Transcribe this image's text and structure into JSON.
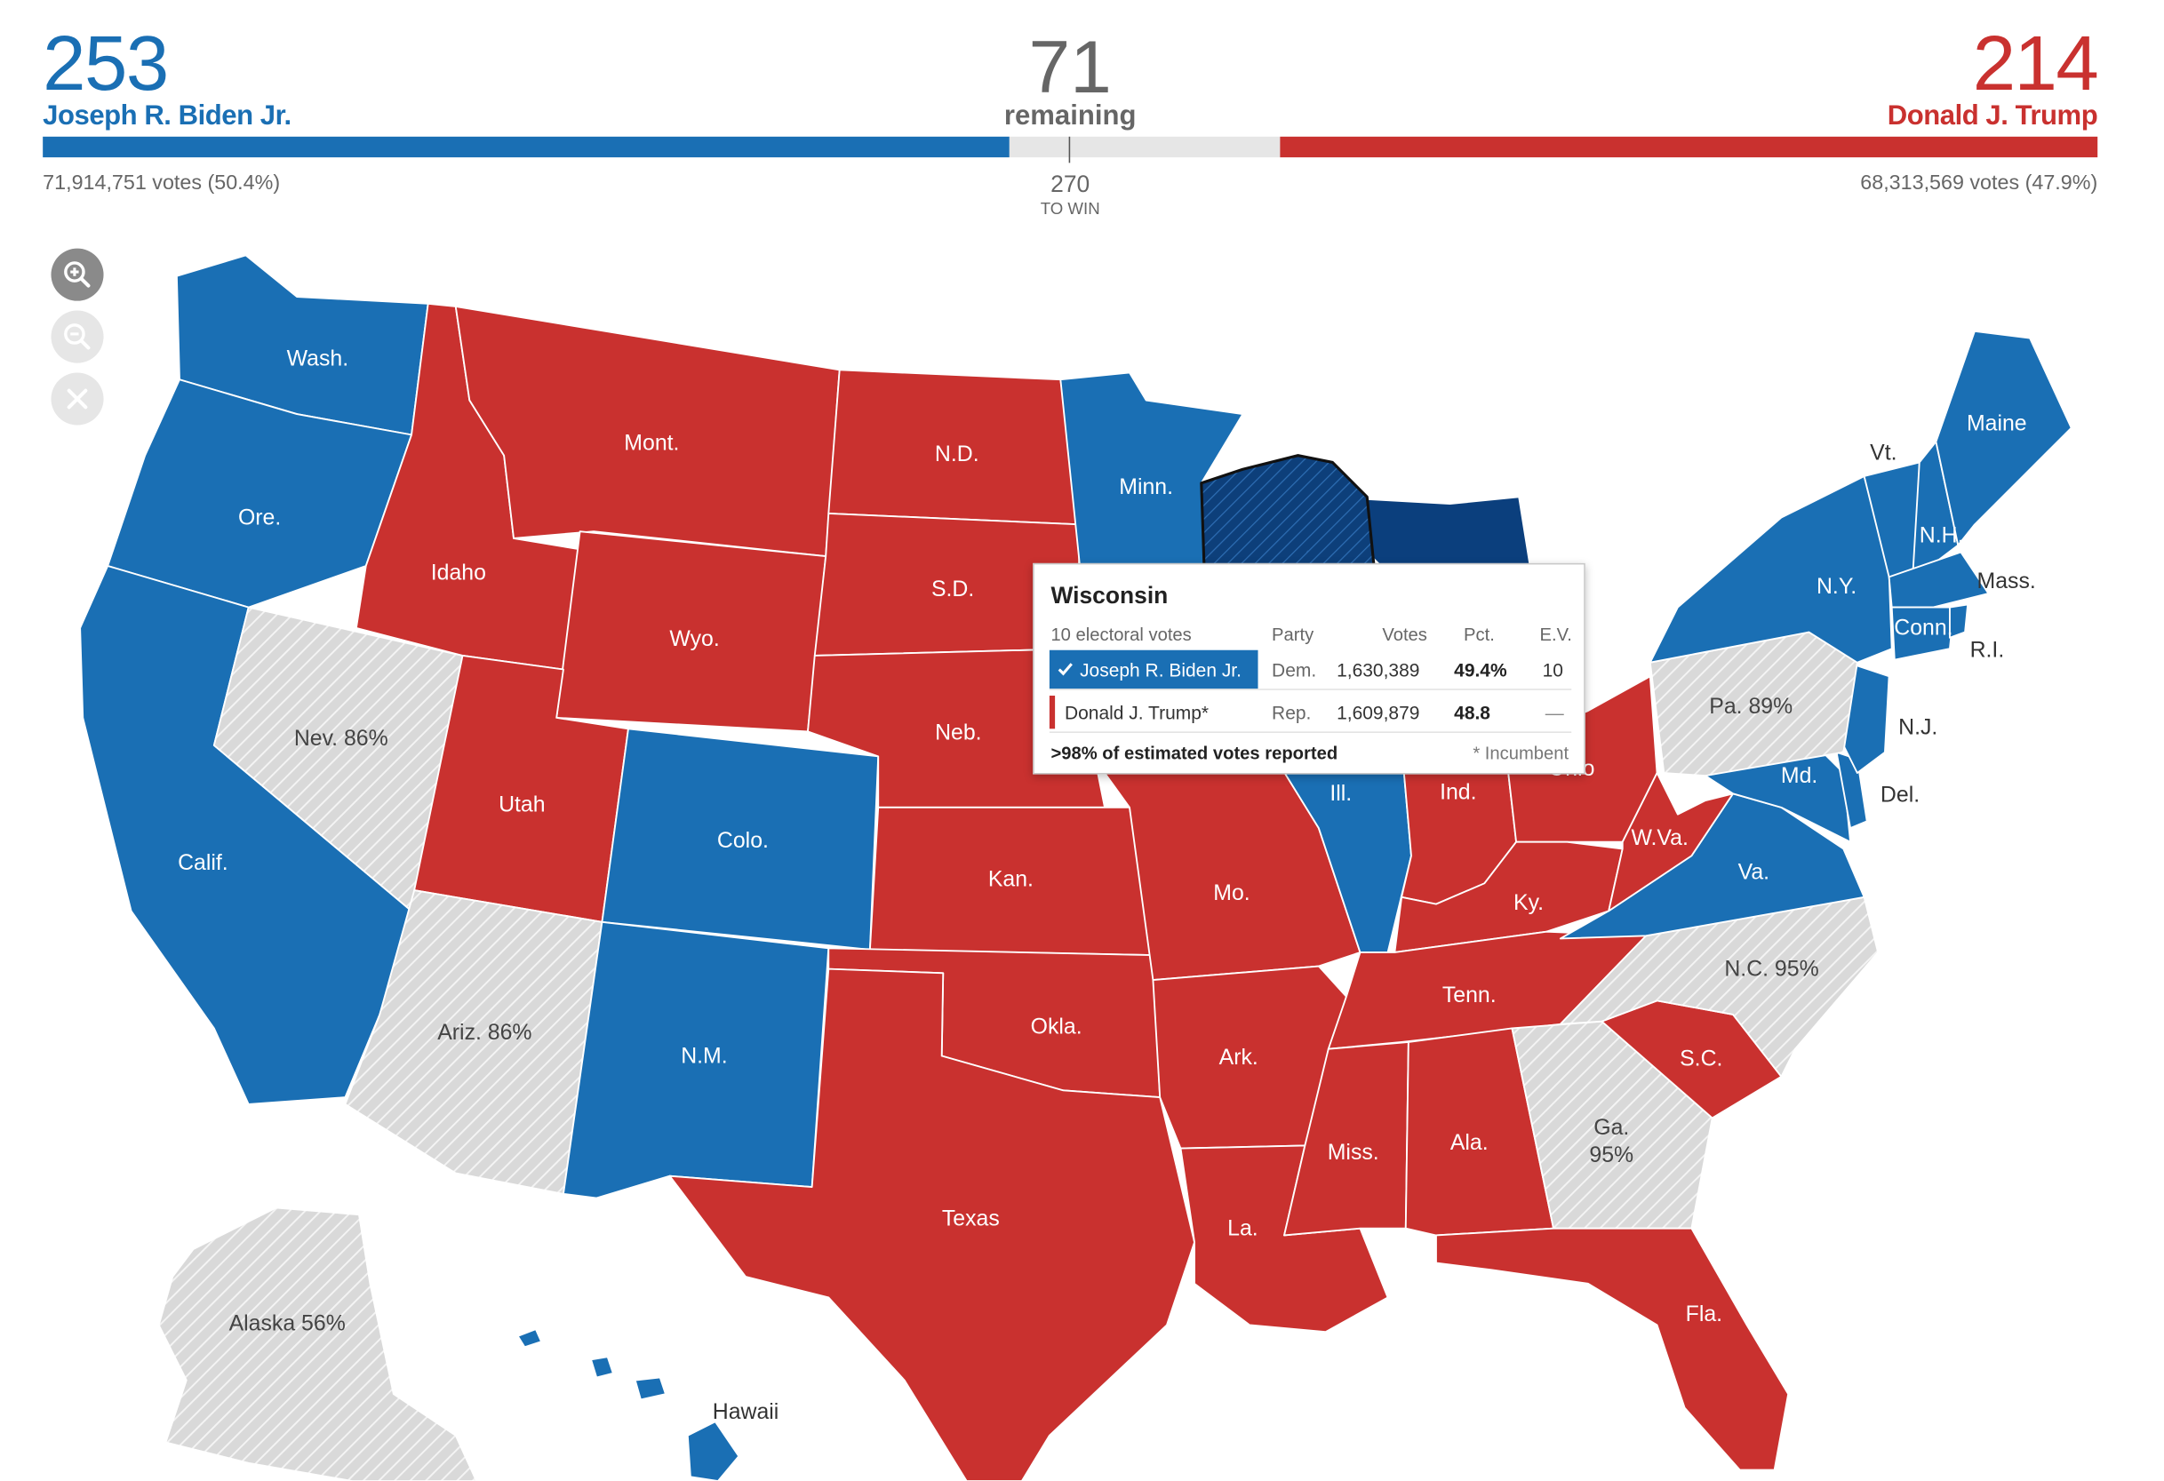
{
  "header": {
    "dem": {
      "ev": "253",
      "name": "Joseph R. Biden Jr.",
      "votes": "71,914,751 votes (50.4%)",
      "color": "#1a6fb4"
    },
    "rep": {
      "ev": "214",
      "name": "Donald J. Trump",
      "votes": "68,313,569 votes (47.9%)",
      "color": "#c9312f"
    },
    "remaining": {
      "count": "71",
      "label": "remaining"
    },
    "threshold": {
      "value": "270",
      "label": "TO WIN"
    }
  },
  "progress": {
    "dem_ev": 253,
    "remaining_ev": 71,
    "rep_ev": 214,
    "total_ev": 538
  },
  "zoom_controls": {
    "zoom_in": "zoom-in-icon",
    "zoom_out": "zoom-out-icon",
    "reset": "close-icon"
  },
  "colors": {
    "dem": "#1a6fb4",
    "rep": "#c9312f",
    "uncalled": "#dcdcdc",
    "hover_dem": "#0b3f7d"
  },
  "tooltip": {
    "state": "Wisconsin",
    "electoral_votes": "10 electoral votes",
    "columns": {
      "party": "Party",
      "votes": "Votes",
      "pct": "Pct.",
      "ev": "E.V."
    },
    "rows": [
      {
        "name": "Joseph R. Biden Jr.",
        "party": "Dem.",
        "votes": "1,630,389",
        "pct": "49.4%",
        "ev": "10",
        "winner": true
      },
      {
        "name": "Donald J. Trump*",
        "party": "Rep.",
        "votes": "1,609,879",
        "pct": "48.8",
        "ev": "—",
        "winner": false
      }
    ],
    "reported": ">98% of estimated votes reported",
    "incumbent_note": "* Incumbent"
  },
  "states": {
    "wash": "Wash.",
    "ore": "Ore.",
    "calif": "Calif.",
    "nev": "Nev. 86%",
    "idaho": "Idaho",
    "mont": "Mont.",
    "wyo": "Wyo.",
    "utah": "Utah",
    "ariz": "Ariz. 86%",
    "colo": "Colo.",
    "nm": "N.M.",
    "nd": "N.D.",
    "sd": "S.D.",
    "neb": "Neb.",
    "kan": "Kan.",
    "okla": "Okla.",
    "texas": "Texas",
    "minn": "Minn.",
    "mo": "Mo.",
    "ark": "Ark.",
    "la": "La.",
    "ill": "Ill.",
    "ind": "Ind.",
    "ohio": "Ohio",
    "ky": "Ky.",
    "tenn": "Tenn.",
    "miss": "Miss.",
    "ala": "Ala.",
    "ga": "Ga.",
    "ga_pct": "95%",
    "fla": "Fla.",
    "sc": "S.C.",
    "nc": "N.C. 95%",
    "va": "Va.",
    "wva": "W.Va.",
    "md": "Md.",
    "del": "Del.",
    "nj": "N.J.",
    "pa": "Pa. 89%",
    "ny": "N.Y.",
    "vt": "Vt.",
    "nh": "N.H.",
    "maine": "Maine",
    "mass": "Mass.",
    "conn": "Conn.",
    "ri": "R.I.",
    "alaska": "Alaska 56%",
    "hawaii": "Hawaii"
  }
}
